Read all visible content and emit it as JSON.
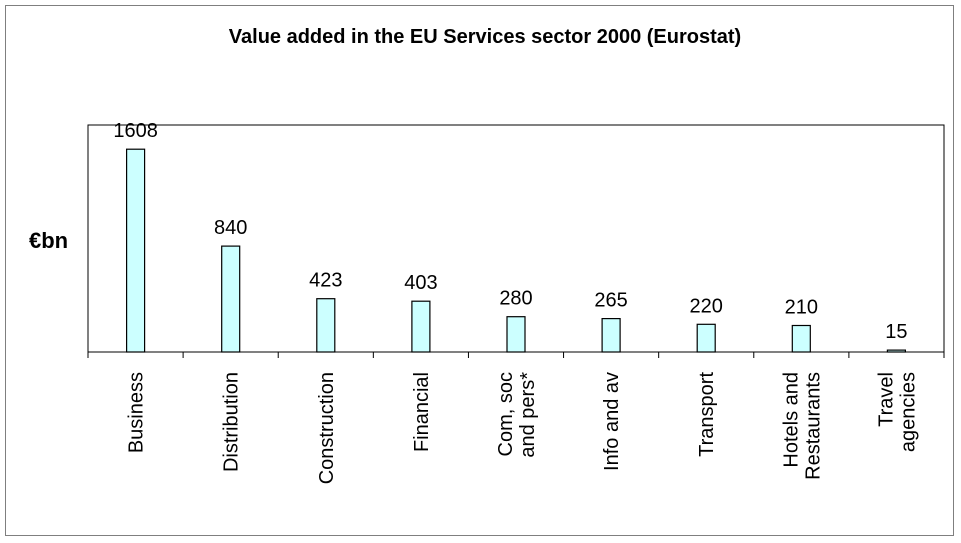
{
  "chart_data": {
    "type": "bar",
    "title": "Value added in the EU Services sector 2000 (Eurostat)",
    "ylabel": "€bn",
    "xlabel": "",
    "categories": [
      [
        "Business"
      ],
      [
        "Distribution"
      ],
      [
        "Construction"
      ],
      [
        "Financial"
      ],
      [
        "Com, soc",
        "and pers*"
      ],
      [
        "Info and av"
      ],
      [
        "Transport"
      ],
      [
        "Hotels and",
        "Restaurants"
      ],
      [
        "Travel",
        "agencies"
      ]
    ],
    "values": [
      1608,
      840,
      423,
      403,
      280,
      265,
      220,
      210,
      15
    ],
    "ylim": [
      0,
      1800
    ],
    "grid": false,
    "legend": "none",
    "colors": {
      "bar_fill": "#ccffff",
      "bar_stroke": "#000000",
      "frame": "#000000"
    }
  }
}
